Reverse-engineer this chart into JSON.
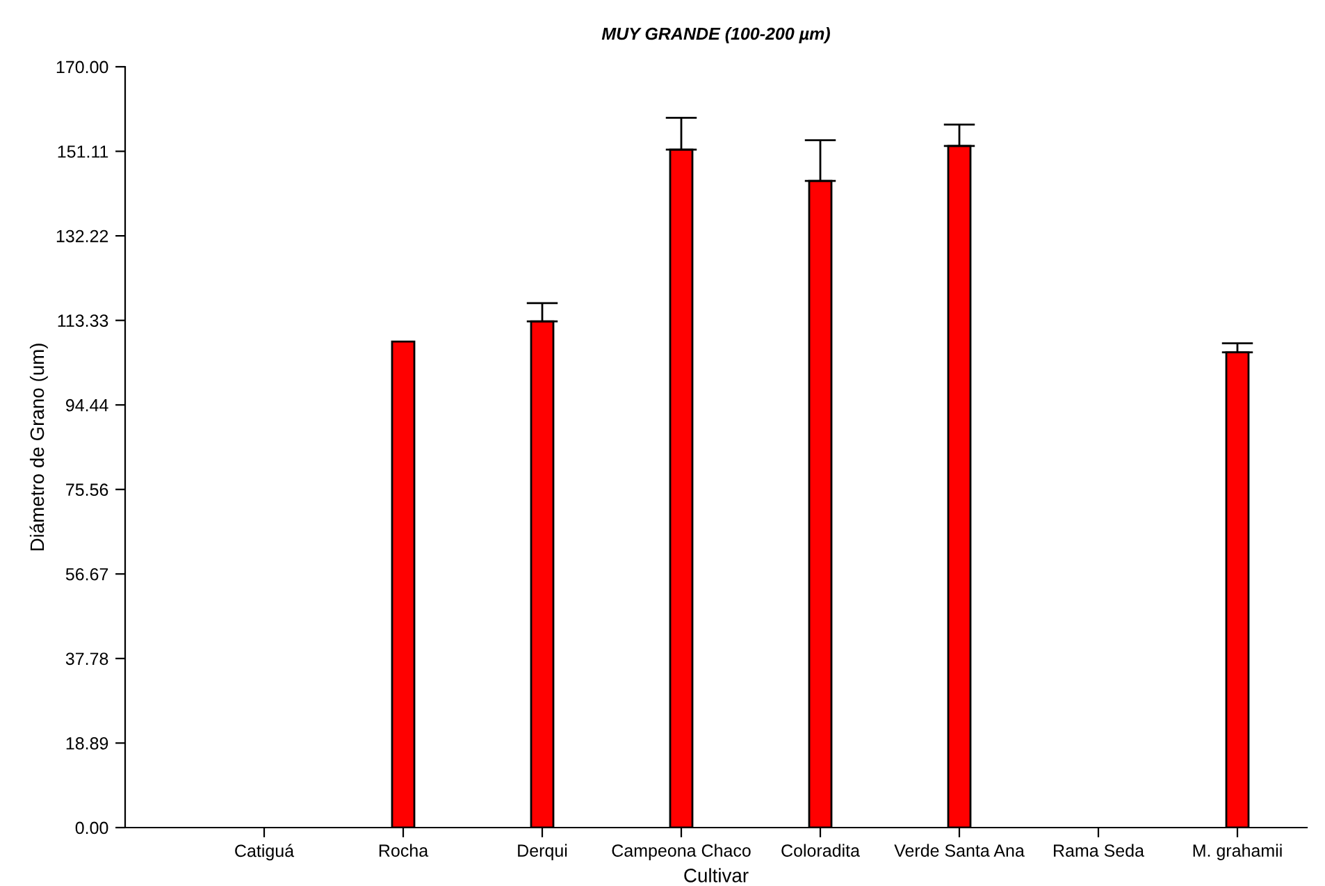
{
  "chart_data": {
    "type": "bar",
    "title": "MUY GRANDE (100-200 µm)",
    "xlabel": "Cultivar",
    "ylabel": "Diámetro de Grano (um)",
    "categories": [
      "Catiguá",
      "Rocha",
      "Derqui",
      "Campeona Chaco",
      "Coloradita",
      "Verde Santa Ana",
      "Rama Seda",
      "M. grahamii"
    ],
    "values": [
      null,
      108.6,
      113.1,
      151.5,
      144.5,
      152.3,
      null,
      106.2
    ],
    "errors": [
      null,
      null,
      [
        113.1,
        117.2
      ],
      [
        151.5,
        158.6
      ],
      [
        144.5,
        153.6
      ],
      [
        152.3,
        157.1
      ],
      null,
      [
        106.2,
        108.2
      ]
    ],
    "color": "#ff0000",
    "ylim": [
      0,
      170
    ],
    "yticks": [
      {
        "value": 0,
        "label": "0.00"
      },
      {
        "value": 18.89,
        "label": "18.89"
      },
      {
        "value": 37.78,
        "label": "37.78"
      },
      {
        "value": 56.67,
        "label": "56.67"
      },
      {
        "value": 75.56,
        "label": "75.56"
      },
      {
        "value": 94.44,
        "label": "94.44"
      },
      {
        "value": 113.33,
        "label": "113.33"
      },
      {
        "value": 132.22,
        "label": "132.22"
      },
      {
        "value": 151.11,
        "label": "151.11"
      },
      {
        "value": 170,
        "label": "170.00"
      }
    ],
    "grid": false,
    "legend": false
  }
}
